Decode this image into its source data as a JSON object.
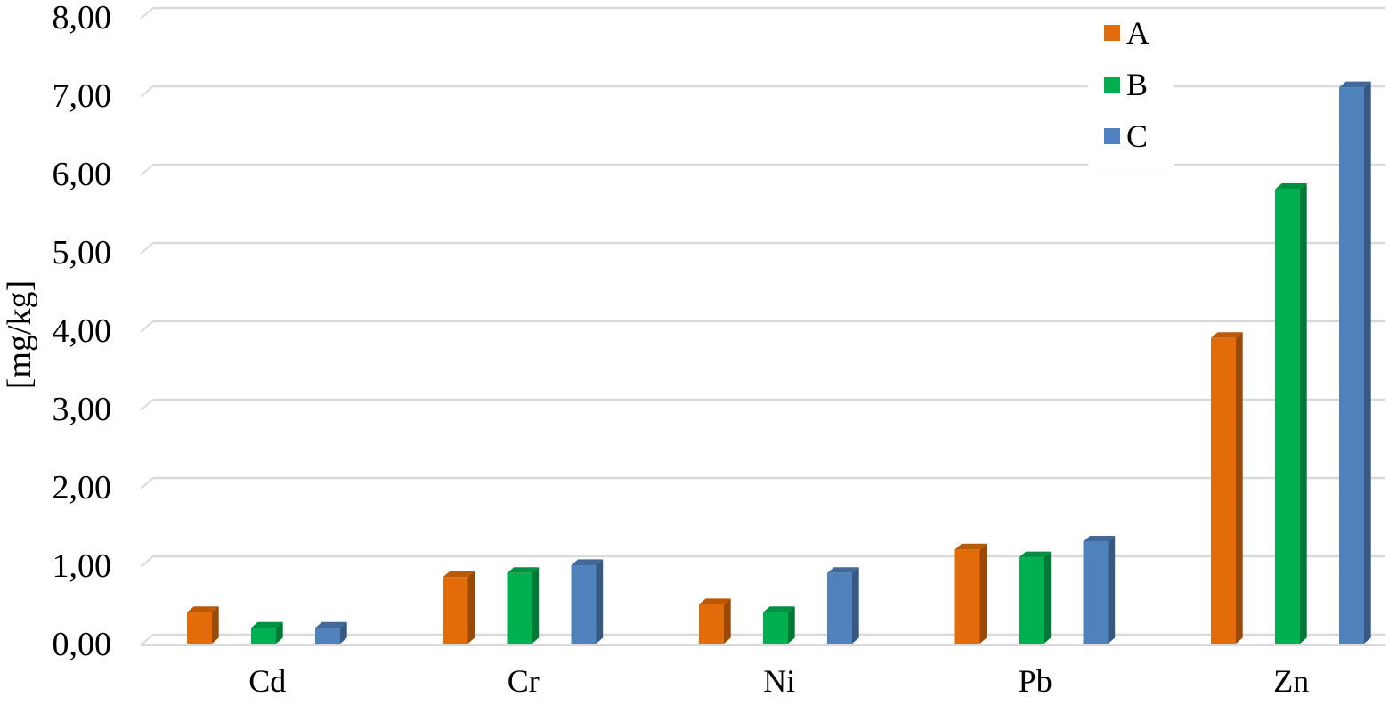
{
  "chart_data": {
    "type": "bar",
    "style": "3d-clustered-column",
    "categories": [
      "Cd",
      "Cr",
      "Ni",
      "Pb",
      "Zn"
    ],
    "series": [
      {
        "name": "A",
        "color": "#E36C0A",
        "values": [
          0.4,
          0.85,
          0.5,
          1.2,
          3.9
        ]
      },
      {
        "name": "B",
        "color": "#00B050",
        "values": [
          0.2,
          0.9,
          0.4,
          1.1,
          5.8
        ]
      },
      {
        "name": "C",
        "color": "#4F81BD",
        "values": [
          0.2,
          1.0,
          0.9,
          1.3,
          7.1
        ]
      }
    ],
    "title": "",
    "xlabel": "",
    "ylabel": "[mg/kg]",
    "ylim": [
      0,
      8
    ],
    "yticks": [
      0,
      1,
      2,
      3,
      4,
      5,
      6,
      7,
      8
    ],
    "ytick_labels": [
      "0,00",
      "1,00",
      "2,00",
      "3,00",
      "4,00",
      "5,00",
      "6,00",
      "7,00",
      "8,00"
    ],
    "grid": true,
    "grid_color": "#D9D9D9",
    "legend_position": "top-right"
  }
}
